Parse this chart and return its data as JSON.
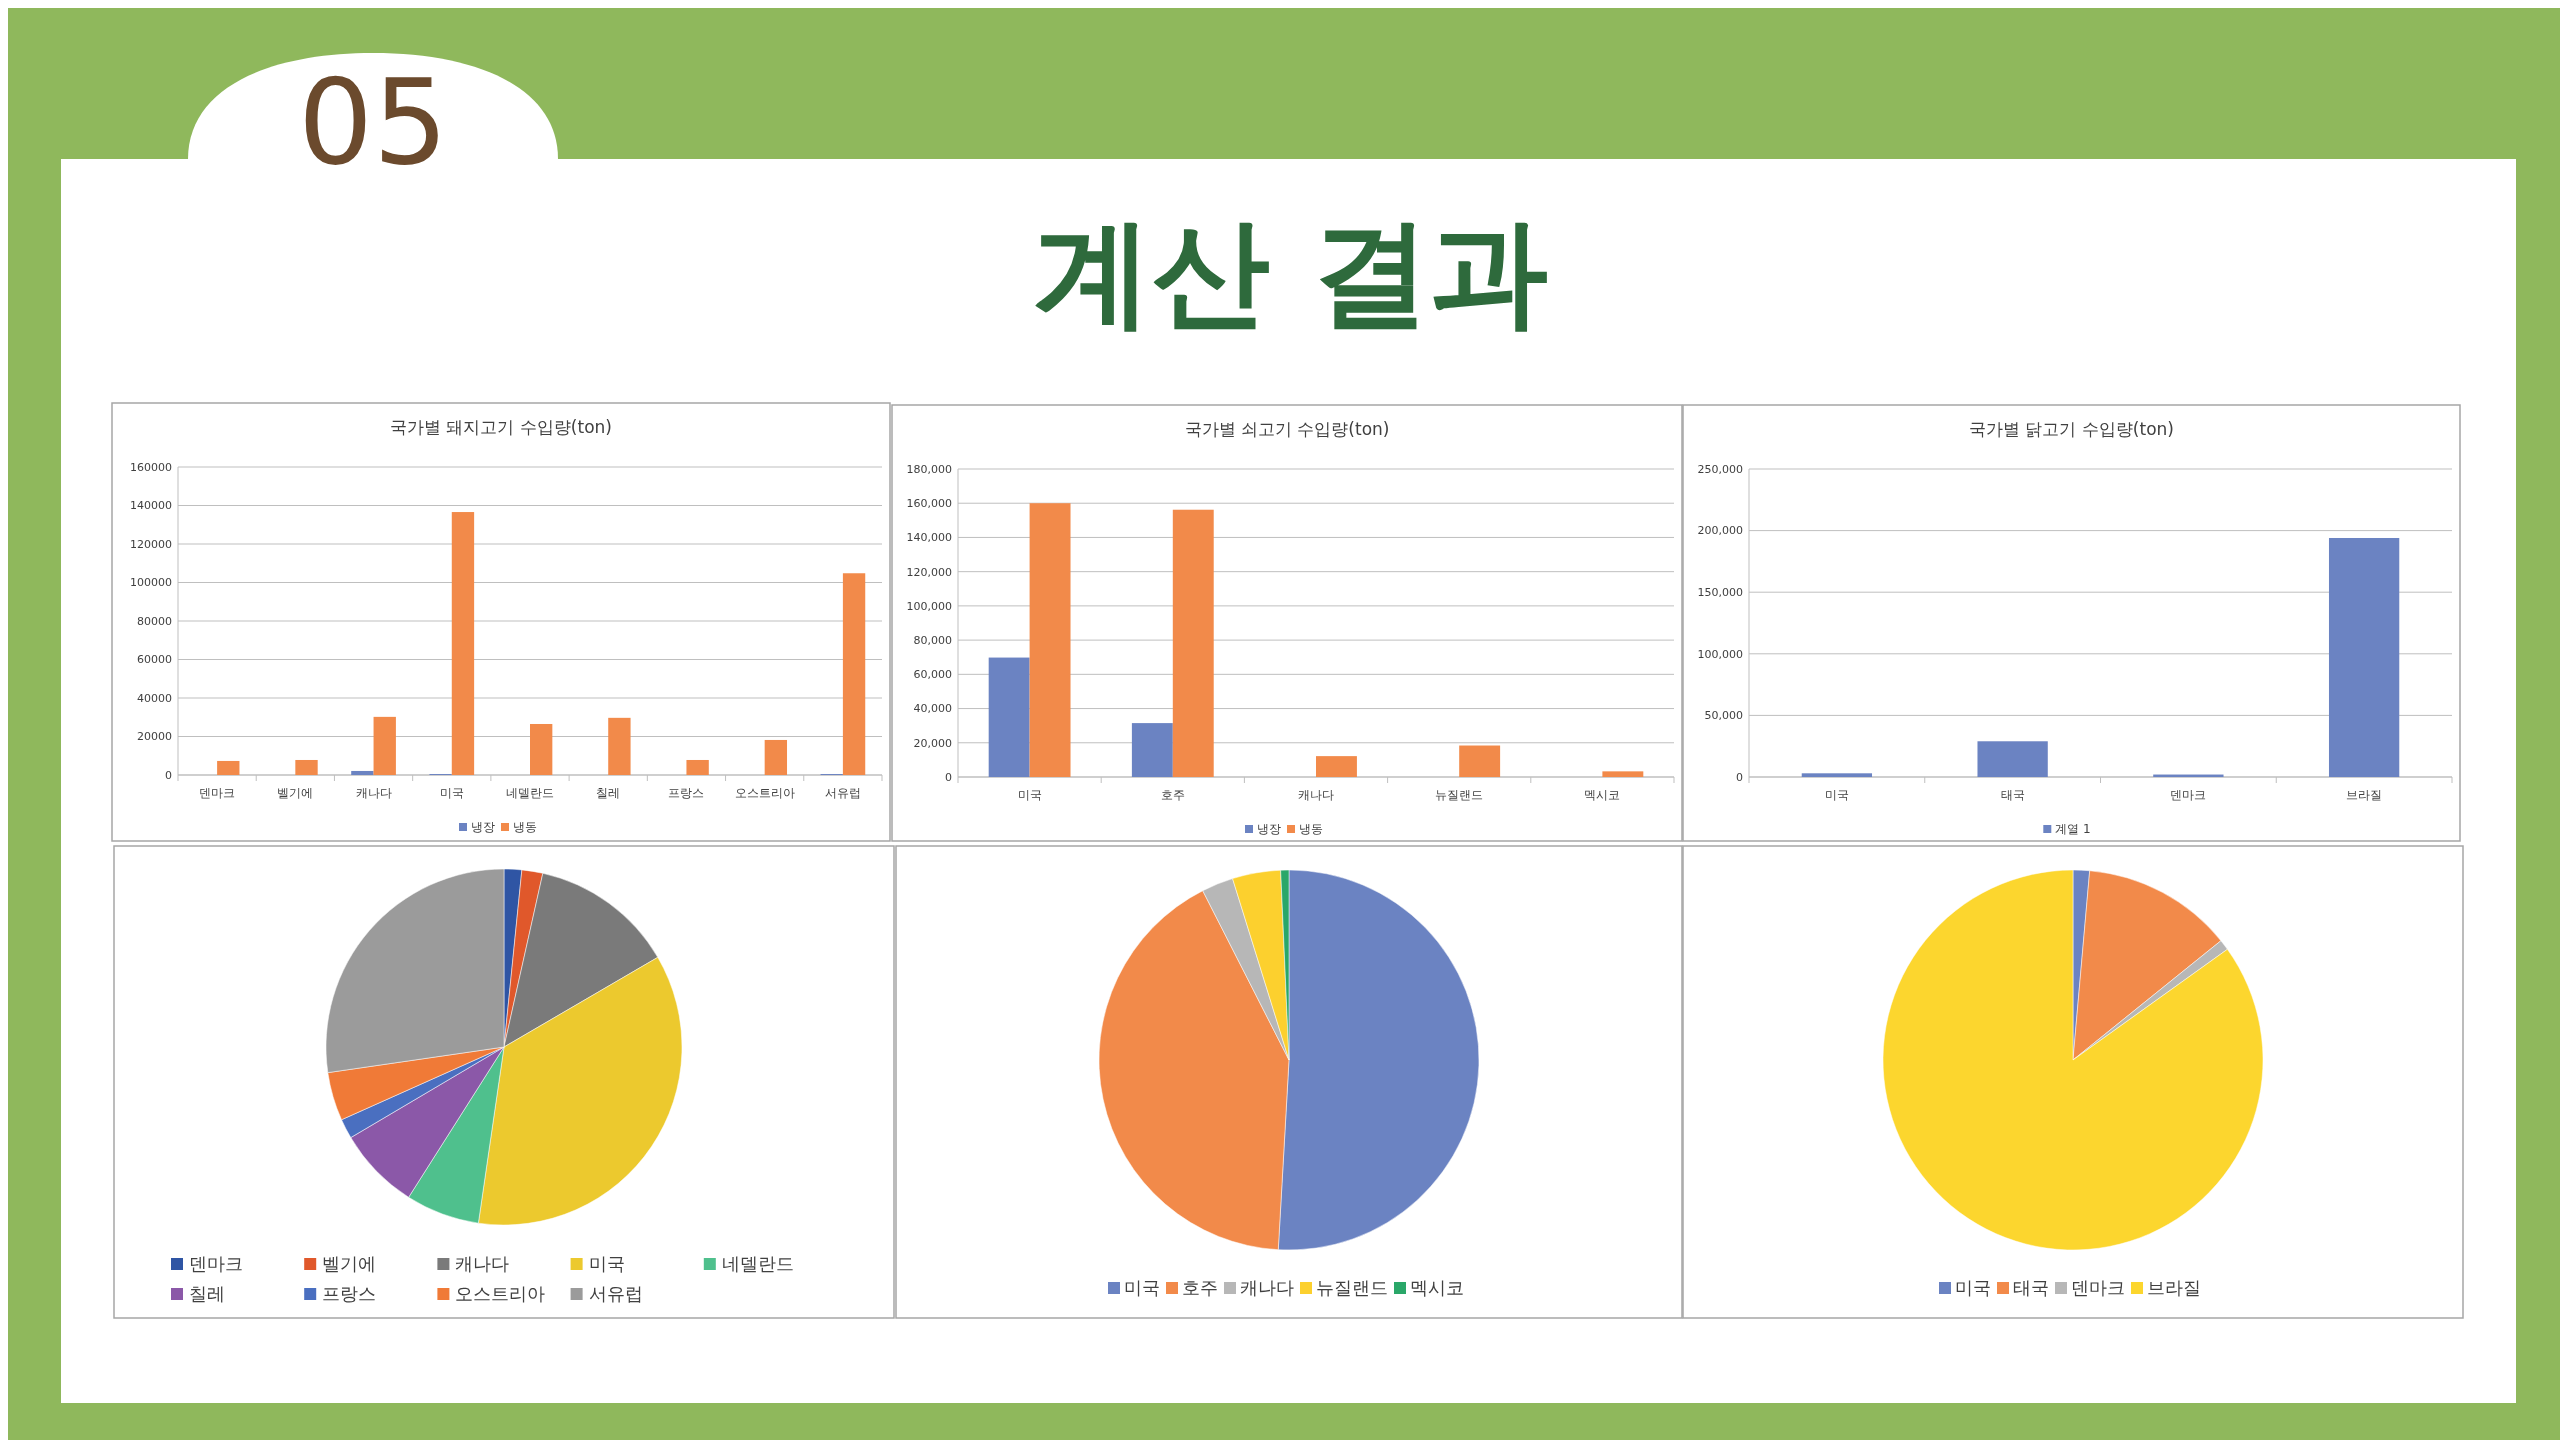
{
  "chart_data": [
    {
      "type": "other",
      "title": "계산 결과",
      "annotations": [
        "05"
      ]
    },
    {
      "type": "bar",
      "title": "국가별 돼지고기 수입량(ton)",
      "categories": [
        "덴마크",
        "벨기에",
        "캐나다",
        "미국",
        "네델란드",
        "칠레",
        "프랑스",
        "오스트리아",
        "서유럽"
      ],
      "series": [
        {
          "name": "냉장",
          "color": "#6b83c2",
          "values": [
            0,
            0,
            2100,
            500,
            0,
            0,
            0,
            0,
            500
          ]
        },
        {
          "name": "냉동",
          "color": "#f28a4a",
          "values": [
            7300,
            7800,
            30200,
            136600,
            26500,
            29700,
            7800,
            18200,
            104800
          ]
        }
      ],
      "ylim": [
        0,
        160000
      ],
      "yticks": [
        0,
        20000,
        40000,
        60000,
        80000,
        100000,
        120000,
        140000,
        160000
      ],
      "grid": "y",
      "legend": "bottom"
    },
    {
      "type": "bar",
      "title": "국가별 쇠고기 수입량(ton)",
      "categories": [
        "미국",
        "호주",
        "캐나다",
        "뉴질랜드",
        "멕시코"
      ],
      "series": [
        {
          "name": "냉장",
          "color": "#6b83c2",
          "values": [
            69800,
            31500,
            0,
            0,
            0
          ]
        },
        {
          "name": "냉동",
          "color": "#f28a4a",
          "values": [
            160000,
            156200,
            12200,
            18400,
            3300
          ]
        }
      ],
      "ylim": [
        0,
        180000
      ],
      "yticks": [
        0,
        {
          "value": 20000,
          "label": "20,000"
        },
        {
          "value": 40000,
          "label": "40,000"
        },
        {
          "value": 60000,
          "label": "60,000"
        },
        {
          "value": 80000,
          "label": "80,000"
        },
        {
          "value": 100000,
          "label": "100,000"
        },
        {
          "value": 120000,
          "label": "120,000"
        },
        {
          "value": 140000,
          "label": "140,000"
        },
        {
          "value": 160000,
          "label": "160,000"
        },
        {
          "value": 180000,
          "label": "180,000"
        }
      ],
      "grid": "y",
      "legend": "bottom"
    },
    {
      "type": "bar",
      "title": "국가별 닭고기 수입량(ton)",
      "categories": [
        "미국",
        "태국",
        "덴마크",
        "브라질"
      ],
      "series": [
        {
          "name": "계열 1",
          "color": "#6b83c2",
          "values": [
            3000,
            29000,
            2000,
            194000
          ]
        }
      ],
      "ylim": [
        0,
        250000
      ],
      "yticks": [
        0,
        {
          "value": 50000,
          "label": "50,000"
        },
        {
          "value": 100000,
          "label": "100,000"
        },
        {
          "value": 150000,
          "label": "150,000"
        },
        {
          "value": 200000,
          "label": "200,000"
        },
        {
          "value": 250000,
          "label": "250,000"
        }
      ],
      "grid": "y",
      "legend": "bottom"
    },
    {
      "type": "pie",
      "categories": [
        "덴마크",
        "벨기에",
        "캐나다",
        "미국",
        "네델란드",
        "칠레",
        "프랑스",
        "오스트리아",
        "서유럽"
      ],
      "values": [
        1.6,
        1.9,
        13.1,
        35.7,
        6.7,
        7.5,
        1.8,
        4.4,
        27.3
      ],
      "colors": [
        "#2f55a4",
        "#e0582b",
        "#7a7a7a",
        "#ecc92e",
        "#4fc08d",
        "#8b58a8",
        "#4a6fc0",
        "#f07a37",
        "#9b9b9b"
      ],
      "legend": "bottom"
    },
    {
      "type": "pie",
      "categories": [
        "미국",
        "호주",
        "캐나다",
        "뉴질랜드",
        "멕시코"
      ],
      "values": [
        50.9,
        41.6,
        2.7,
        4.1,
        0.7
      ],
      "colors": [
        "#6b83c2",
        "#f28a4a",
        "#b7b7b7",
        "#fcd02e",
        "#2aa769"
      ],
      "legend": "bottom"
    },
    {
      "type": "pie",
      "categories": [
        "미국",
        "태국",
        "덴마크",
        "브라질"
      ],
      "values": [
        1.4,
        12.8,
        0.9,
        84.9
      ],
      "colors": [
        "#6b83c2",
        "#f28a4a",
        "#b7b7b7",
        "#fcd62e"
      ],
      "legend": "bottom"
    }
  ]
}
